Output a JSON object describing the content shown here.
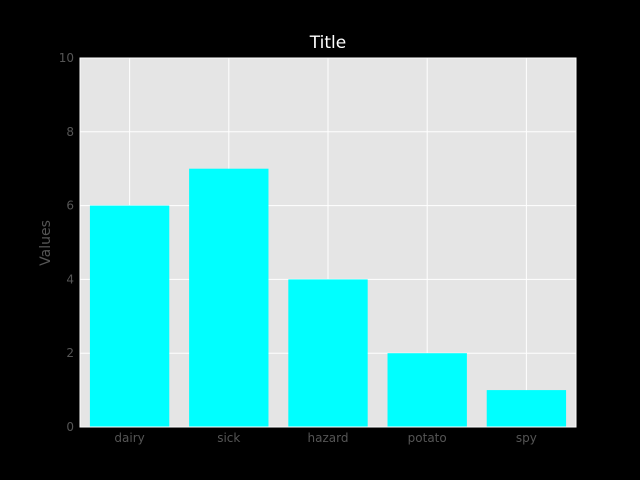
{
  "chart_data": {
    "type": "bar",
    "title": "Title",
    "xlabel": "",
    "ylabel": "Values",
    "categories": [
      "dairy",
      "sick",
      "hazard",
      "potato",
      "spy"
    ],
    "values": [
      6,
      7,
      4,
      2,
      1
    ],
    "ylim": [
      0,
      10
    ],
    "yticks": [
      0,
      2,
      4,
      6,
      8,
      10
    ],
    "grid": true,
    "colors": {
      "figure_background": "#000000",
      "plot_background": "#e5e5e5",
      "grid": "#ffffff",
      "bar": "#00ffff",
      "tick_text": "#555555",
      "title_text": "#ffffff"
    }
  }
}
